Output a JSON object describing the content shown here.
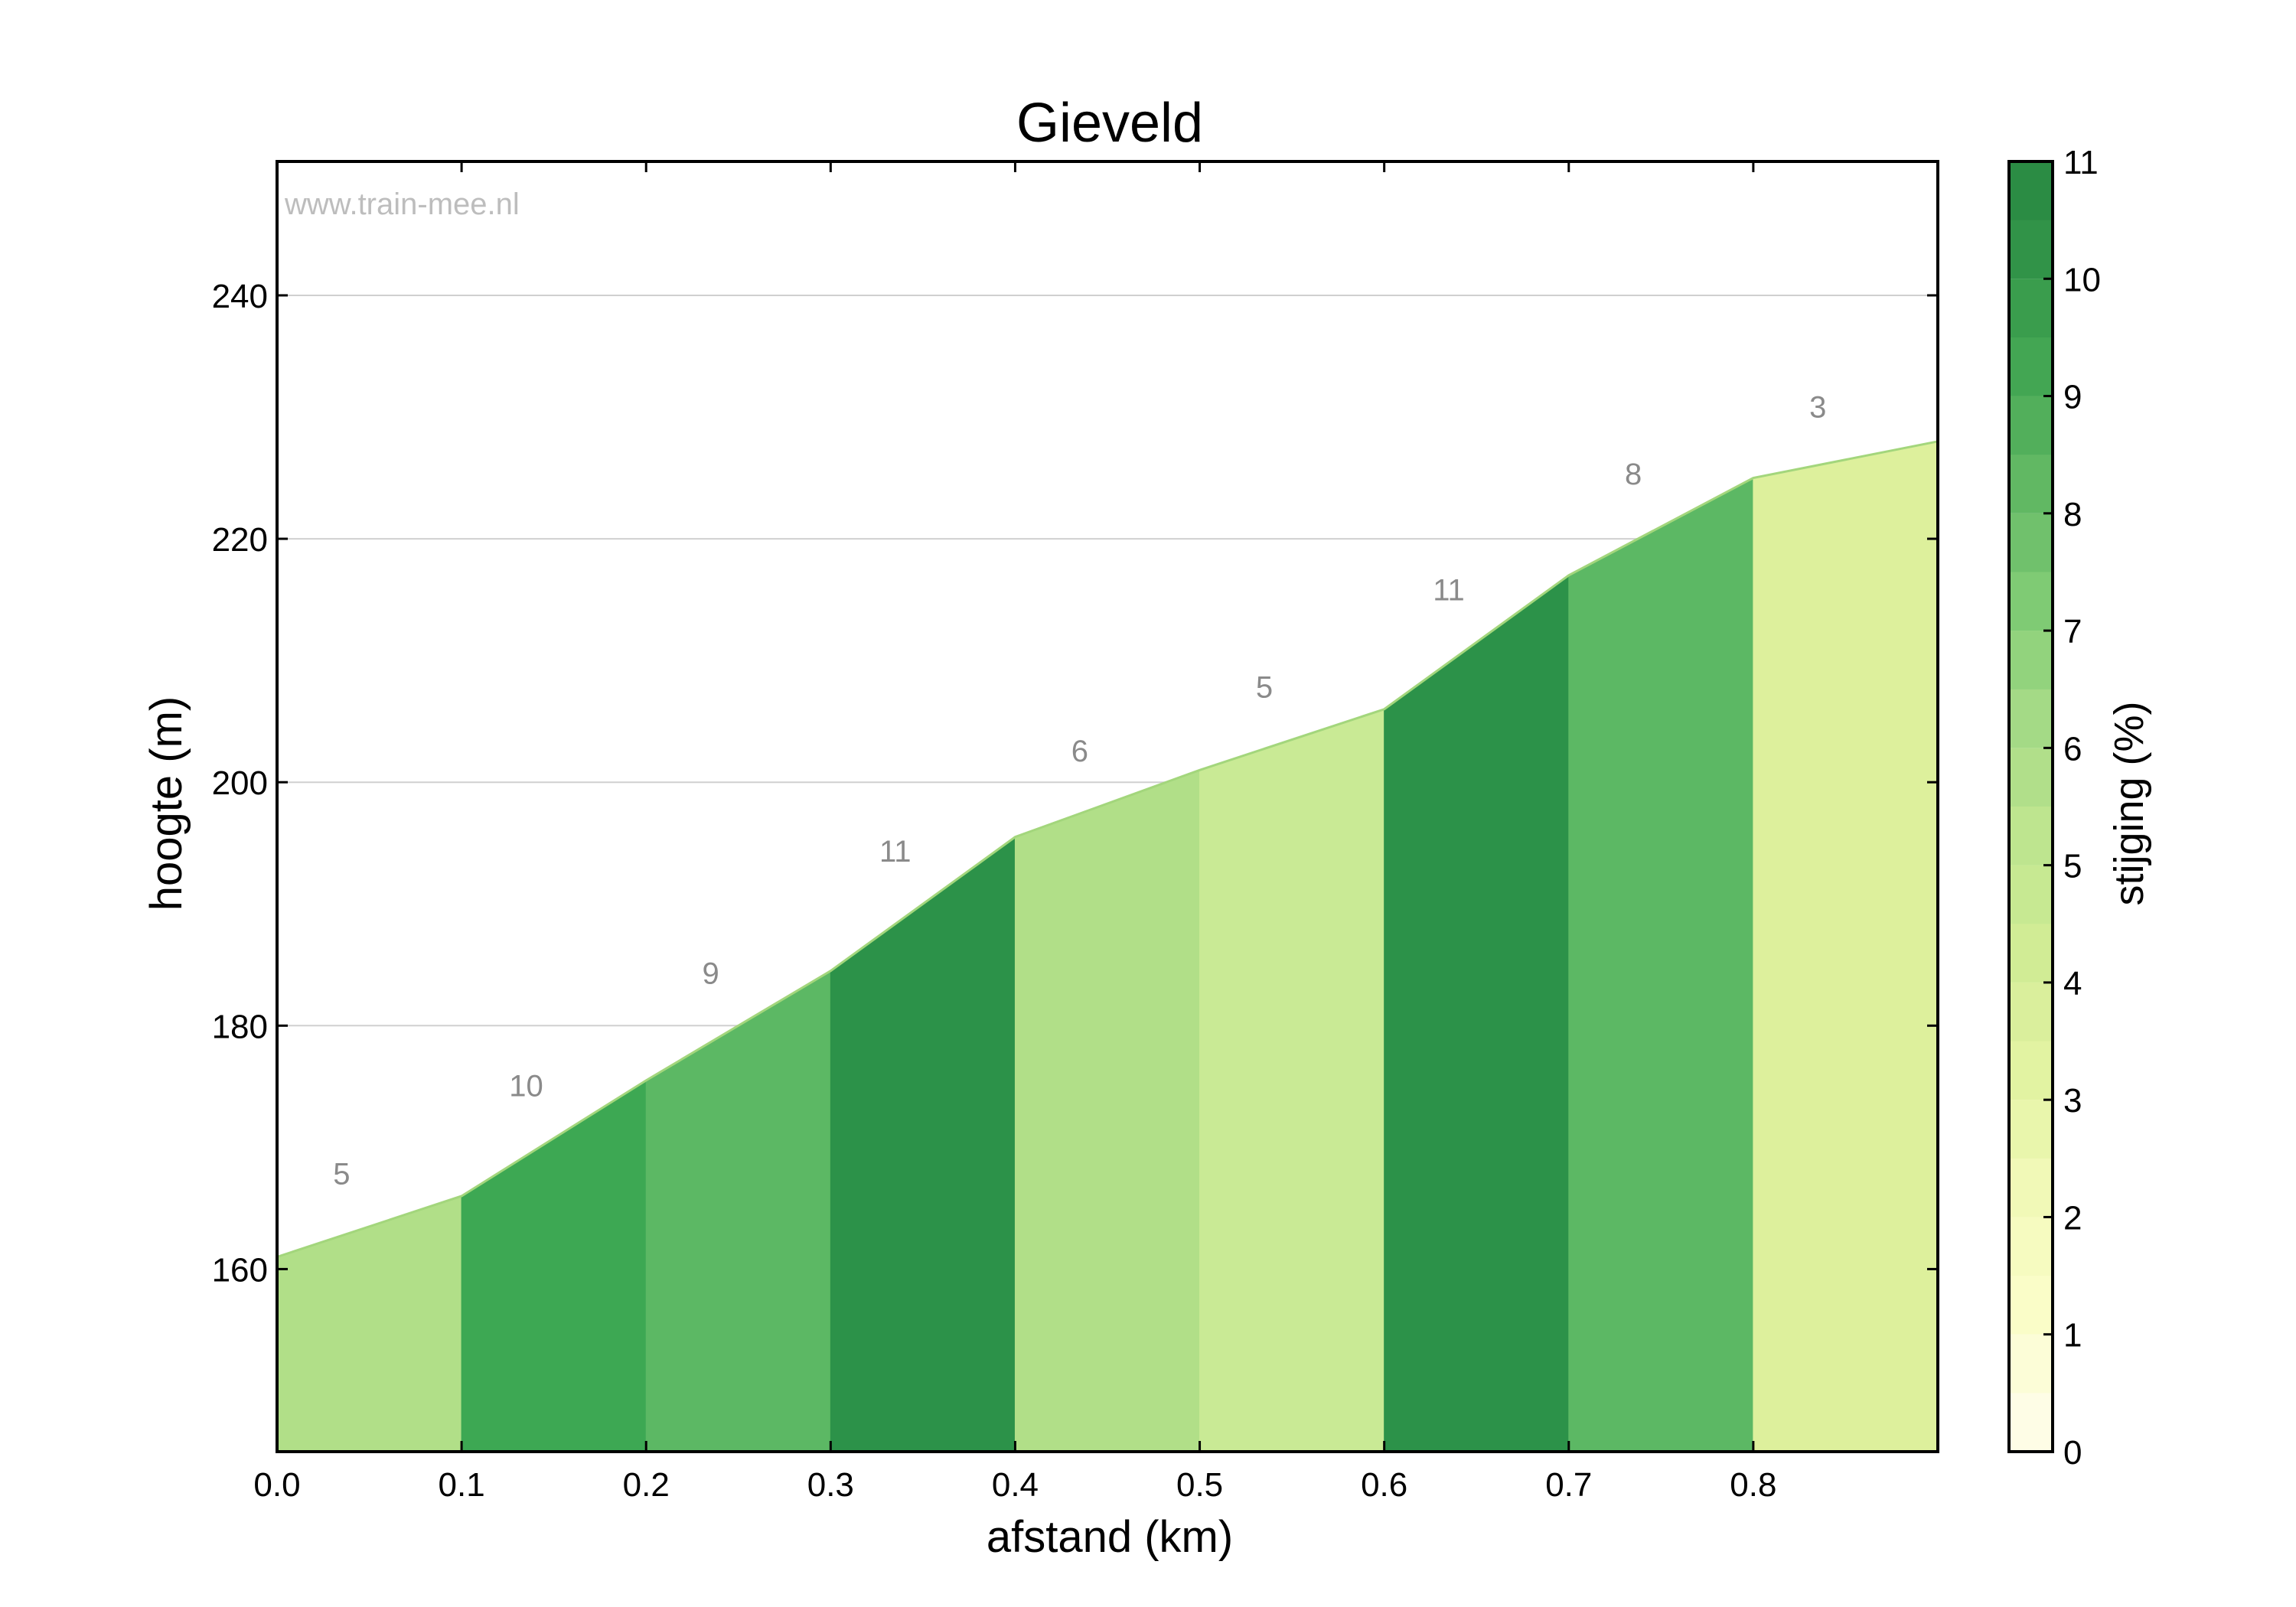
{
  "chart_data": {
    "type": "area",
    "title": "Gieveld",
    "watermark": "www.train-mee.nl",
    "xlabel": "afstand (km)",
    "ylabel": "hoogte (m)",
    "colorbar_label": "stijging (%)",
    "xlim": [
      0,
      0.9
    ],
    "ylim": [
      145,
      251
    ],
    "x_ticks": [
      0.0,
      0.1,
      0.2,
      0.3,
      0.4,
      0.5,
      0.6,
      0.7,
      0.8
    ],
    "x_tick_labels": [
      "0.0",
      "0.1",
      "0.2",
      "0.3",
      "0.4",
      "0.5",
      "0.6",
      "0.7",
      "0.8"
    ],
    "y_ticks": [
      160,
      180,
      200,
      220,
      240
    ],
    "y_tick_labels": [
      "160",
      "180",
      "200",
      "220",
      "240"
    ],
    "grid": true,
    "profile": {
      "x": [
        0.0,
        0.1,
        0.2,
        0.3,
        0.4,
        0.5,
        0.6,
        0.7,
        0.8,
        0.9
      ],
      "elevation": [
        161,
        166,
        175.5,
        184.5,
        195.5,
        201,
        206,
        217,
        225,
        228
      ]
    },
    "segments": [
      {
        "start": 0.0,
        "end": 0.1,
        "grade": 5,
        "label": "5"
      },
      {
        "start": 0.1,
        "end": 0.2,
        "grade": 10,
        "label": "10"
      },
      {
        "start": 0.2,
        "end": 0.3,
        "grade": 9,
        "label": "9"
      },
      {
        "start": 0.3,
        "end": 0.4,
        "grade": 11,
        "label": "11"
      },
      {
        "start": 0.4,
        "end": 0.5,
        "grade": 6,
        "label": "6"
      },
      {
        "start": 0.5,
        "end": 0.6,
        "grade": 5,
        "label": "5"
      },
      {
        "start": 0.6,
        "end": 0.7,
        "grade": 11,
        "label": "11"
      },
      {
        "start": 0.7,
        "end": 0.8,
        "grade": 8,
        "label": "8"
      },
      {
        "start": 0.8,
        "end": 0.9,
        "grade": 3,
        "label": "3"
      }
    ],
    "colorbar": {
      "range": [
        0,
        11
      ],
      "tick_labels": [
        "0",
        "1",
        "2",
        "3",
        "4",
        "5",
        "6",
        "7",
        "8",
        "9",
        "10",
        "11"
      ],
      "colors": [
        "#fefde6",
        "#fafdc8",
        "#f1f9b7",
        "#e2f3a2",
        "#d1ec95",
        "#bee58f",
        "#a4da86",
        "#7fcb74",
        "#61b863",
        "#43a653",
        "#319348",
        "#268540"
      ]
    },
    "segment_colors": {
      "3": "#ddf09c",
      "5": "#b1df88",
      "5b": "#c9ea95",
      "6": "#b1df88",
      "8": "#5cb864",
      "9": "#5cb864",
      "10": "#3da853",
      "11": "#2c9249"
    },
    "profile_line_color": "#a3d67c"
  }
}
